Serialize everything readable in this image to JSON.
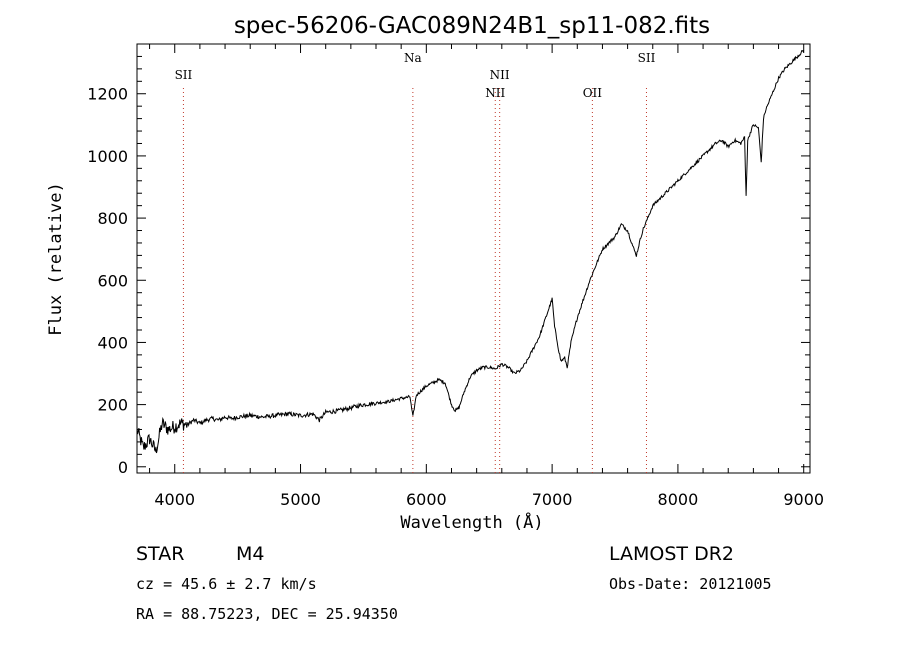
{
  "chart_data": {
    "type": "line",
    "title": "spec-56206-GAC089N24B1_sp11-082.fits",
    "xlabel": "Wavelength (Å)",
    "ylabel": "Flux (relative)",
    "xlim": [
      3700,
      9050
    ],
    "ylim": [
      -20,
      1360
    ],
    "xticks": [
      4000,
      5000,
      6000,
      7000,
      8000,
      9000
    ],
    "yticks": [
      0,
      200,
      400,
      600,
      800,
      1000,
      1200
    ],
    "series": [
      {
        "name": "spectrum",
        "x": [
          3700,
          3750,
          3800,
          3850,
          3900,
          3950,
          4000,
          4050,
          4100,
          4150,
          4200,
          4250,
          4300,
          4350,
          4400,
          4450,
          4500,
          4600,
          4700,
          4800,
          4900,
          5000,
          5100,
          5150,
          5200,
          5300,
          5400,
          5500,
          5600,
          5700,
          5800,
          5870,
          5893,
          5920,
          6000,
          6100,
          6150,
          6200,
          6230,
          6260,
          6300,
          6350,
          6400,
          6450,
          6500,
          6550,
          6600,
          6650,
          6700,
          6750,
          6800,
          6850,
          6900,
          6950,
          7000,
          7020,
          7050,
          7070,
          7100,
          7120,
          7150,
          7200,
          7250,
          7300,
          7350,
          7400,
          7450,
          7500,
          7550,
          7600,
          7650,
          7670,
          7700,
          7720,
          7750,
          7800,
          7850,
          7900,
          8000,
          8100,
          8200,
          8300,
          8350,
          8400,
          8450,
          8500,
          8530,
          8542,
          8555,
          8580,
          8600,
          8640,
          8662,
          8680,
          8700,
          8750,
          8800,
          8850,
          8900,
          8950,
          9000
        ],
        "y": [
          120,
          60,
          90,
          50,
          140,
          120,
          130,
          140,
          135,
          150,
          140,
          150,
          155,
          150,
          160,
          155,
          160,
          165,
          160,
          165,
          170,
          165,
          170,
          150,
          175,
          180,
          190,
          200,
          205,
          210,
          220,
          225,
          160,
          230,
          260,
          280,
          270,
          200,
          180,
          190,
          240,
          290,
          310,
          320,
          320,
          315,
          330,
          320,
          300,
          310,
          340,
          380,
          420,
          480,
          540,
          450,
          380,
          340,
          350,
          320,
          400,
          480,
          540,
          600,
          650,
          700,
          720,
          740,
          780,
          760,
          700,
          680,
          730,
          760,
          790,
          840,
          860,
          880,
          920,
          960,
          1000,
          1040,
          1050,
          1030,
          1050,
          1040,
          1060,
          870,
          1050,
          1080,
          1100,
          1090,
          980,
          1120,
          1150,
          1200,
          1250,
          1280,
          1300,
          1320,
          1340
        ]
      }
    ],
    "line_markers": [
      {
        "label": "SII",
        "x": 4069,
        "row": 1
      },
      {
        "label": "Na",
        "x": 5893,
        "row": 0
      },
      {
        "label": "NII",
        "x": 6548,
        "row": 2
      },
      {
        "label": "NII",
        "x": 6583,
        "row": 1
      },
      {
        "label": "OII",
        "x": 7320,
        "row": 2
      },
      {
        "label": "SII",
        "x": 7750,
        "row": 0
      }
    ]
  },
  "info": {
    "object_type": "STAR",
    "subclass": "M4",
    "redshift": "cz = 45.6 ± 2.7 km/s",
    "coords": "RA =  88.75223, DEC =  25.94350",
    "survey": "LAMOST DR2",
    "obs_date": "Obs-Date: 20121005"
  }
}
